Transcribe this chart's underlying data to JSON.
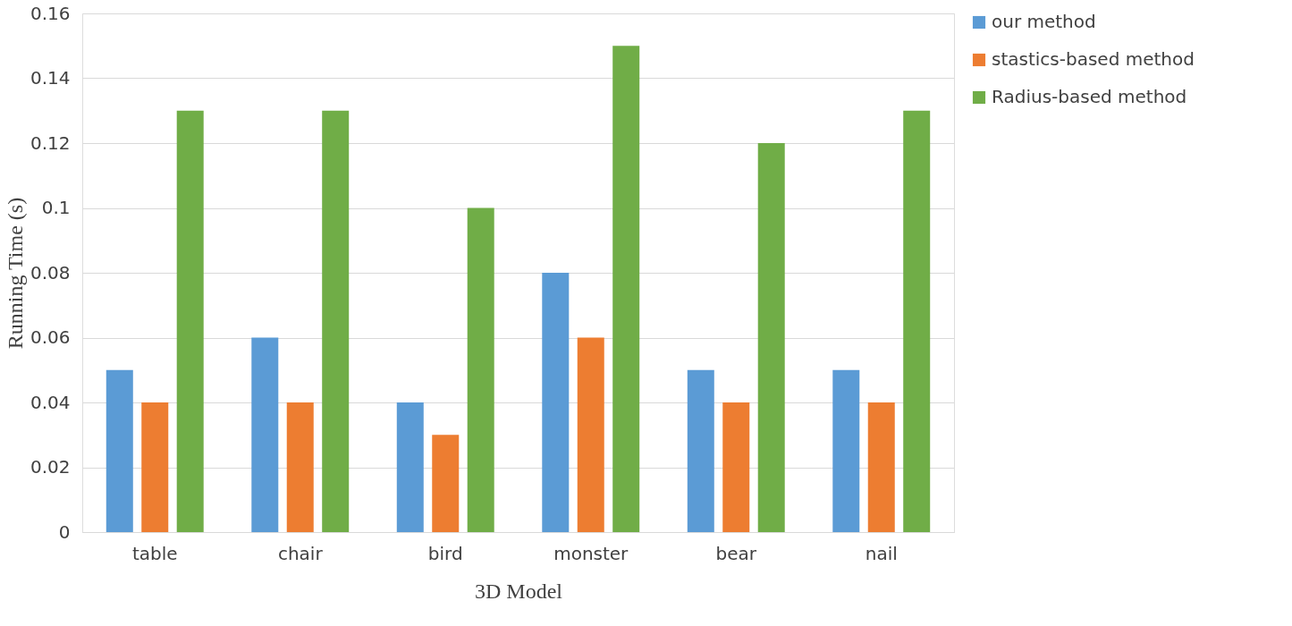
{
  "chart_data": {
    "type": "bar",
    "xlabel": "3D Model",
    "ylabel": "Running Time (s)",
    "categories": [
      "table",
      "chair",
      "bird",
      "monster",
      "bear",
      "nail"
    ],
    "series": [
      {
        "name": "our method",
        "color": "#5b9bd5",
        "values": [
          0.05,
          0.06,
          0.04,
          0.08,
          0.05,
          0.05
        ]
      },
      {
        "name": "stastics-based method",
        "color": "#ed7d31",
        "values": [
          0.04,
          0.04,
          0.03,
          0.06,
          0.04,
          0.04
        ]
      },
      {
        "name": "Radius-based method",
        "color": "#70ad47",
        "values": [
          0.13,
          0.13,
          0.1,
          0.15,
          0.12,
          0.13
        ]
      }
    ],
    "ylim": [
      0,
      0.16
    ],
    "yticks": [
      0,
      0.02,
      0.04,
      0.06,
      0.08,
      0.1,
      0.12,
      0.14,
      0.16
    ],
    "grid": "y",
    "legend": "right"
  }
}
